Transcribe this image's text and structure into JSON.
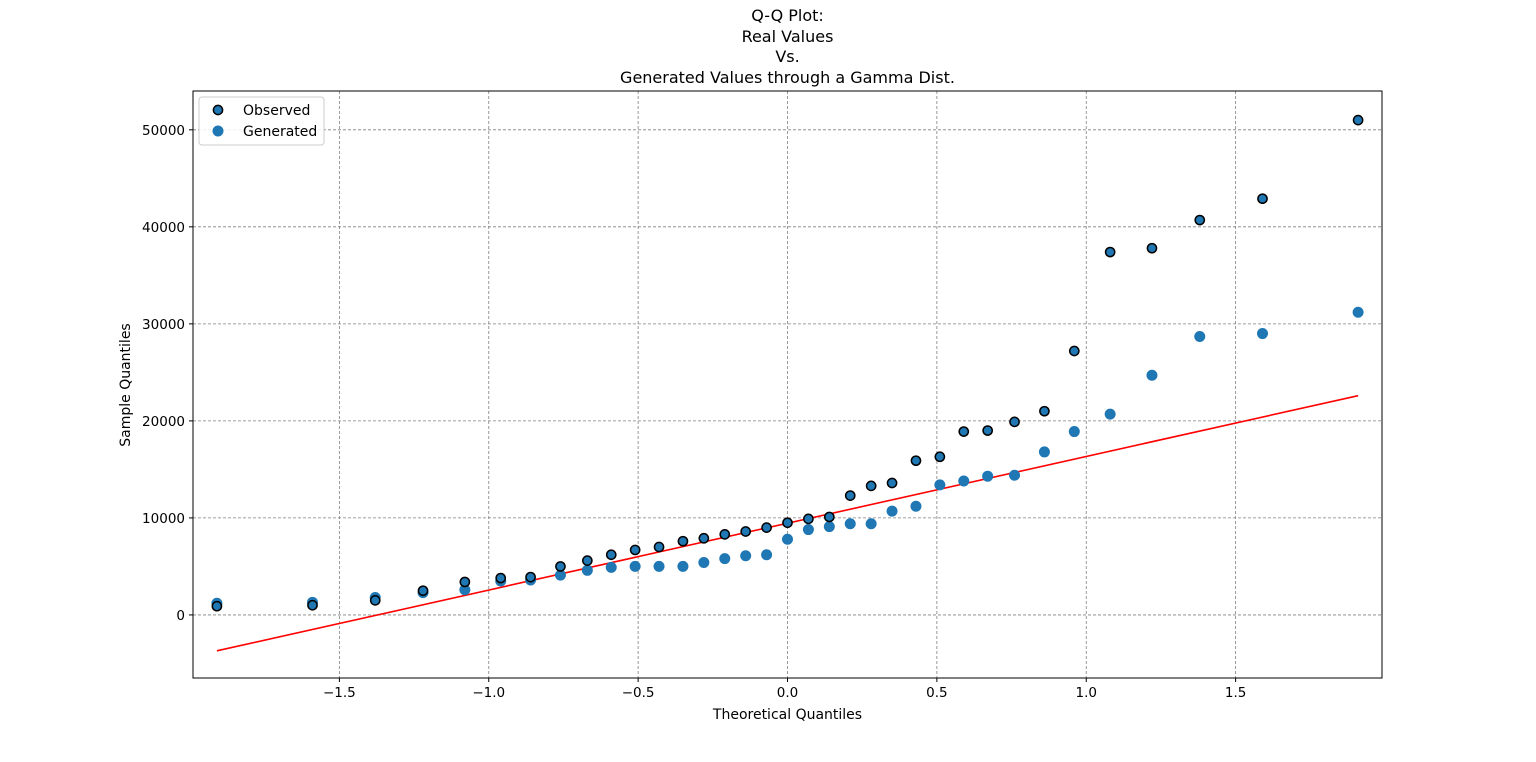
{
  "chart_data": {
    "type": "scatter",
    "title_lines": [
      "Q-Q Plot:",
      "Real Values",
      "Vs.",
      "Generated Values through a Gamma Dist."
    ],
    "xlabel": "Theoretical Quantiles",
    "ylabel": "Sample Quantiles",
    "xlim": [
      -1.99,
      1.99
    ],
    "ylim": [
      -6500,
      54000
    ],
    "xticks": [
      -1.5,
      -1.0,
      -0.5,
      0.0,
      0.5,
      1.0,
      1.5
    ],
    "xtick_labels": [
      "−1.5",
      "−1.0",
      "−0.5",
      "0.0",
      "0.5",
      "1.0",
      "1.5"
    ],
    "yticks": [
      0,
      10000,
      20000,
      30000,
      40000,
      50000
    ],
    "ytick_labels": [
      "0",
      "10000",
      "20000",
      "30000",
      "40000",
      "50000"
    ],
    "grid": true,
    "legend_position": "top-left",
    "series": [
      {
        "name": "Observed",
        "color": "#1f77b4",
        "edge_color": "#000000",
        "x": [
          -1.91,
          -1.59,
          -1.38,
          -1.22,
          -1.08,
          -0.96,
          -0.86,
          -0.76,
          -0.67,
          -0.59,
          -0.51,
          -0.43,
          -0.35,
          -0.28,
          -0.21,
          -0.14,
          -0.07,
          0.0,
          0.07,
          0.14,
          0.21,
          0.28,
          0.35,
          0.43,
          0.51,
          0.59,
          0.67,
          0.76,
          0.86,
          0.96,
          1.08,
          1.22,
          1.38,
          1.59,
          1.91
        ],
        "y": [
          900,
          1000,
          1500,
          2500,
          3400,
          3800,
          3900,
          5000,
          5600,
          6200,
          6700,
          7000,
          7600,
          7900,
          8300,
          8600,
          9000,
          9500,
          9900,
          10100,
          12300,
          13300,
          13600,
          15900,
          16300,
          18900,
          19000,
          19900,
          21000,
          27200,
          37400,
          37800,
          40700,
          42900,
          51000
        ]
      },
      {
        "name": "Generated",
        "color": "#1f77b4",
        "edge_color": "#1f77b4",
        "x": [
          -1.91,
          -1.59,
          -1.38,
          -1.22,
          -1.08,
          -0.96,
          -0.86,
          -0.76,
          -0.67,
          -0.59,
          -0.51,
          -0.43,
          -0.35,
          -0.28,
          -0.21,
          -0.14,
          -0.07,
          0.0,
          0.07,
          0.14,
          0.21,
          0.28,
          0.35,
          0.43,
          0.51,
          0.59,
          0.67,
          0.76,
          0.86,
          0.96,
          1.08,
          1.22,
          1.38,
          1.59,
          1.91
        ],
        "y": [
          1200,
          1300,
          1800,
          2300,
          2600,
          3500,
          3600,
          4100,
          4600,
          4900,
          5000,
          5000,
          5000,
          5400,
          5800,
          6100,
          6200,
          7800,
          8800,
          9100,
          9400,
          9400,
          10700,
          11200,
          13400,
          13800,
          14300,
          14400,
          16800,
          18900,
          20700,
          24700,
          28700,
          29000,
          31200
        ]
      }
    ],
    "reference_line": {
      "color": "#ff0000",
      "x": [
        -1.91,
        1.91
      ],
      "y": [
        -3700,
        22600
      ]
    }
  }
}
